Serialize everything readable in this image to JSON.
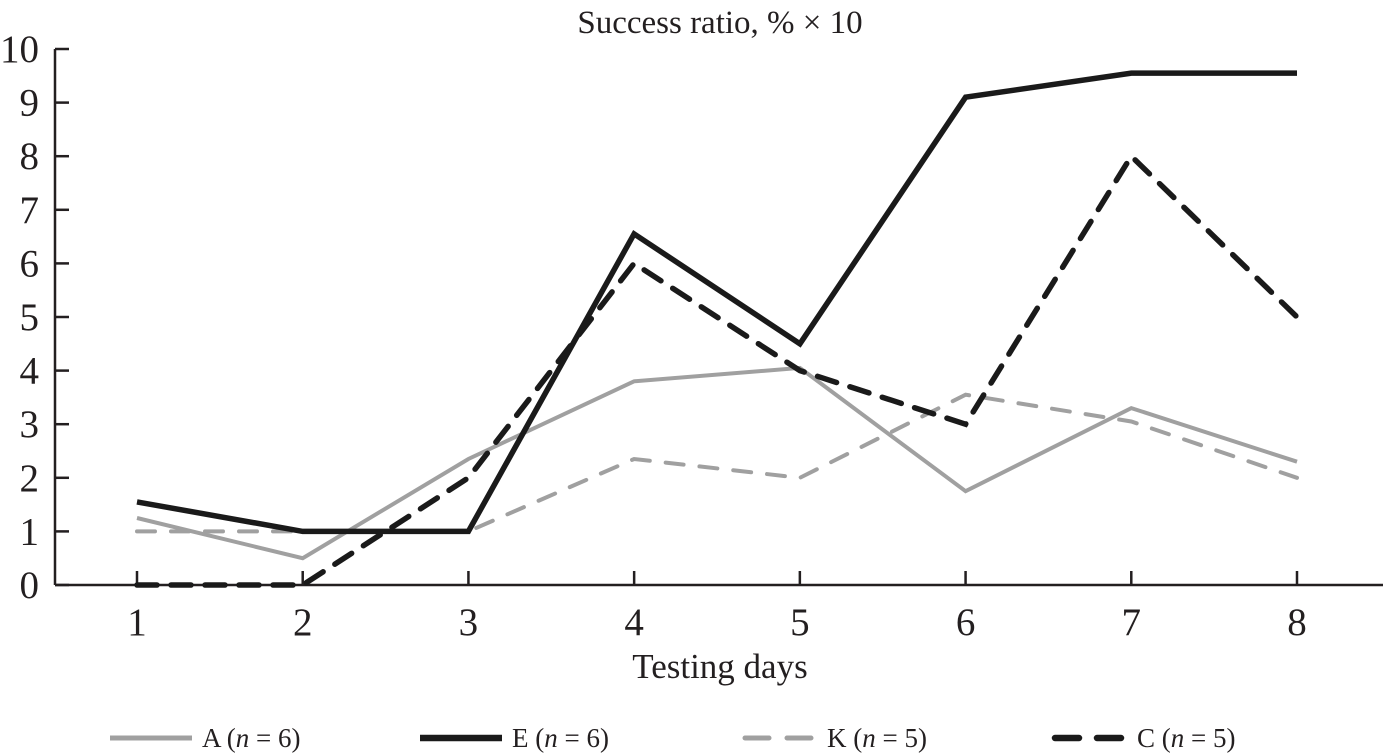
{
  "chart_data": {
    "type": "line",
    "title": "Success ratio, % × 10",
    "xlabel": "Testing days",
    "ylabel": "",
    "x": [
      1,
      2,
      3,
      4,
      5,
      6,
      7,
      8
    ],
    "x_ticks": [
      "1",
      "2",
      "3",
      "4",
      "5",
      "6",
      "7",
      "8"
    ],
    "y_ticks": [
      "0",
      "1",
      "2",
      "3",
      "4",
      "5",
      "6",
      "7",
      "8",
      "9",
      "10"
    ],
    "xlim": [
      0.5,
      8.5
    ],
    "ylim": [
      0,
      10
    ],
    "grid": false,
    "legend_position": "bottom",
    "series": [
      {
        "name": "A",
        "legend_n": "6",
        "color": "#a0a0a0",
        "style": "solid",
        "width": "thin",
        "values": [
          1.25,
          0.5,
          2.35,
          3.8,
          4.05,
          1.75,
          3.3,
          2.3
        ]
      },
      {
        "name": "E",
        "legend_n": "6",
        "color": "#1a1a1a",
        "style": "solid",
        "width": "thick",
        "values": [
          1.55,
          1.0,
          1.0,
          6.55,
          4.5,
          9.1,
          9.55,
          9.55
        ]
      },
      {
        "name": "K",
        "legend_n": "5",
        "color": "#a0a0a0",
        "style": "dashed",
        "width": "thin",
        "values": [
          1.0,
          1.0,
          1.0,
          2.35,
          2.0,
          3.55,
          3.05,
          2.0
        ]
      },
      {
        "name": "C",
        "legend_n": "5",
        "color": "#1a1a1a",
        "style": "dashed",
        "width": "thick",
        "values": [
          0,
          0,
          2.0,
          6.0,
          4.0,
          3.0,
          8.0,
          5.0
        ]
      }
    ]
  }
}
